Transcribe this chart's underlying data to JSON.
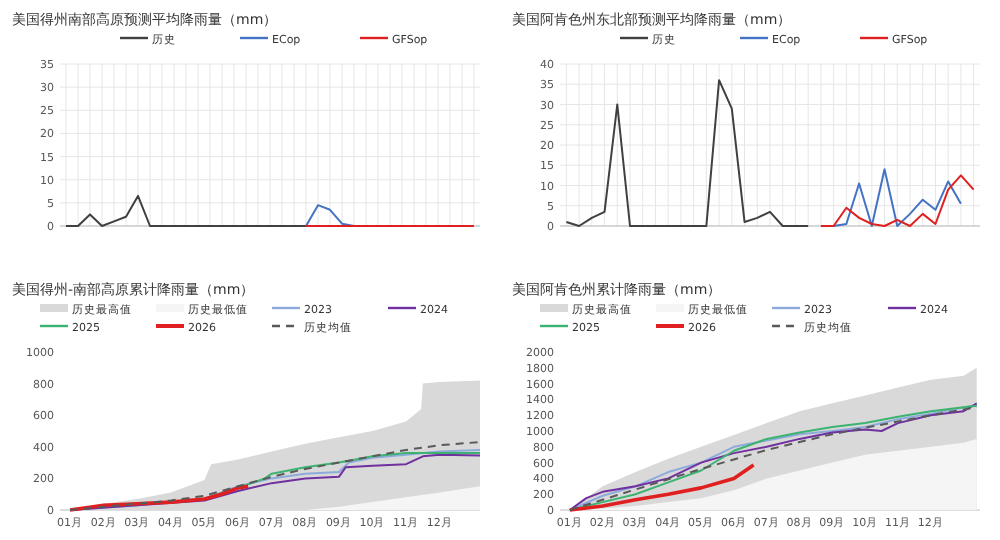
{
  "chart_data": [
    {
      "type": "line",
      "title": "美国得州南部高原预测平均降雨量（mm）",
      "legend": "top",
      "grid": true,
      "ylim": [
        0,
        35
      ],
      "yticks": [
        0,
        5,
        10,
        15,
        20,
        25,
        30,
        35
      ],
      "categories": [
        null,
        null,
        null,
        null,
        null,
        null,
        null,
        null,
        null,
        null,
        null,
        null,
        null,
        null,
        null,
        null,
        null,
        null,
        null,
        null,
        null,
        null,
        null,
        null,
        null,
        null,
        null,
        null,
        null,
        null,
        null,
        null,
        null,
        null,
        null
      ],
      "series": [
        {
          "name": "历史",
          "color": "#404040",
          "values": [
            0,
            0,
            2.5,
            0,
            1,
            2,
            6.5,
            0,
            0,
            0,
            0,
            0,
            0,
            0,
            0,
            0,
            0,
            0,
            0,
            0,
            0,
            null,
            null,
            null,
            null,
            null,
            null,
            null,
            null,
            null,
            null,
            null,
            null,
            null,
            null
          ]
        },
        {
          "name": "ECop",
          "color": "#4472c4",
          "values": [
            null,
            null,
            null,
            null,
            null,
            null,
            null,
            null,
            null,
            null,
            null,
            null,
            null,
            null,
            null,
            null,
            null,
            null,
            null,
            null,
            0,
            4.5,
            3.5,
            0.5,
            0,
            null,
            null,
            null,
            null,
            null,
            null,
            null,
            null,
            null,
            null
          ]
        },
        {
          "name": "GFSop",
          "color": "#e02020",
          "values": [
            null,
            null,
            null,
            null,
            null,
            null,
            null,
            null,
            null,
            null,
            null,
            null,
            null,
            null,
            null,
            null,
            null,
            null,
            null,
            null,
            0,
            0,
            0,
            0,
            0,
            0,
            0,
            0,
            0,
            0,
            0,
            0,
            0,
            0,
            0
          ]
        }
      ]
    },
    {
      "type": "line",
      "title": "美国阿肯色州东北部预测平均降雨量（mm）",
      "legend": "top",
      "grid": true,
      "ylim": [
        0,
        40
      ],
      "yticks": [
        0,
        5,
        10,
        15,
        20,
        25,
        30,
        35,
        40
      ],
      "categories": [
        null,
        null,
        null,
        null,
        null,
        null,
        null,
        null,
        null,
        null,
        null,
        null,
        null,
        null,
        null,
        null,
        null,
        null,
        null,
        null,
        null,
        null,
        null,
        null,
        null,
        null,
        null,
        null,
        null,
        null,
        null,
        null,
        null
      ],
      "series": [
        {
          "name": "历史",
          "color": "#404040",
          "values": [
            1,
            0,
            2,
            3.5,
            30,
            0,
            0,
            0,
            0,
            0,
            0,
            0,
            36,
            29,
            1,
            2,
            3.5,
            0,
            0,
            0,
            null,
            null,
            null,
            null,
            null,
            null,
            null,
            null,
            null,
            null,
            null,
            null,
            null
          ]
        },
        {
          "name": "ECop",
          "color": "#4472c4",
          "values": [
            null,
            null,
            null,
            null,
            null,
            null,
            null,
            null,
            null,
            null,
            null,
            null,
            null,
            null,
            null,
            null,
            null,
            null,
            null,
            null,
            null,
            0,
            0.5,
            10.5,
            0,
            14,
            0,
            3,
            6.5,
            4,
            11,
            5.5,
            null
          ]
        },
        {
          "name": "GFSop",
          "color": "#e02020",
          "values": [
            null,
            null,
            null,
            null,
            null,
            null,
            null,
            null,
            null,
            null,
            null,
            null,
            null,
            null,
            null,
            null,
            null,
            null,
            null,
            null,
            0,
            0,
            4.5,
            2,
            0.5,
            0,
            1.5,
            0,
            3,
            0.5,
            9,
            12.5,
            9
          ]
        }
      ]
    },
    {
      "type": "line",
      "title": "美国得州-南部高原累计降雨量（mm）",
      "legend": "top",
      "grid": false,
      "ylim": [
        0,
        1000
      ],
      "yticks": [
        0,
        200,
        400,
        600,
        800,
        1000
      ],
      "xlim": [
        0.7,
        13.2
      ],
      "xticks": [
        {
          "value": 1,
          "label": "01月"
        },
        {
          "value": 2,
          "label": "02月"
        },
        {
          "value": 3,
          "label": "03月"
        },
        {
          "value": 4,
          "label": "04月"
        },
        {
          "value": 5,
          "label": "05月"
        },
        {
          "value": 6,
          "label": "06月"
        },
        {
          "value": 7,
          "label": "07月"
        },
        {
          "value": 8,
          "label": "08月"
        },
        {
          "value": 9,
          "label": "09月"
        },
        {
          "value": 10,
          "label": "10月"
        },
        {
          "value": 11,
          "label": "11月"
        },
        {
          "value": 12,
          "label": "12月"
        }
      ],
      "series": [
        {
          "name": "历史最高值",
          "type": "area",
          "color": "#d9d9d9",
          "x": [
            1,
            2,
            3,
            4,
            5,
            5.2,
            6,
            7,
            8,
            9,
            10,
            11,
            11.45,
            11.5,
            12,
            13.2
          ],
          "values": [
            0,
            40,
            70,
            110,
            190,
            290,
            320,
            370,
            420,
            460,
            500,
            560,
            640,
            800,
            810,
            820
          ]
        },
        {
          "name": "历史最低值",
          "type": "area",
          "color": "#f5f5f5",
          "x": [
            1,
            8,
            9,
            10,
            11,
            12,
            13.2
          ],
          "values": [
            0,
            0,
            20,
            50,
            80,
            110,
            150
          ]
        },
        {
          "name": "2023",
          "color": "#8eaadb",
          "x": [
            1,
            3,
            5,
            6,
            7,
            8,
            9,
            9.3,
            10,
            11,
            12,
            13.2
          ],
          "values": [
            0,
            30,
            70,
            150,
            200,
            230,
            240,
            300,
            330,
            350,
            370,
            380
          ]
        },
        {
          "name": "2024",
          "color": "#7030a0",
          "x": [
            1,
            5,
            6,
            7,
            8,
            9,
            9.2,
            10,
            11,
            11.5,
            12,
            13.2
          ],
          "values": [
            0,
            60,
            120,
            170,
            200,
            210,
            270,
            280,
            290,
            340,
            350,
            345
          ]
        },
        {
          "name": "2025",
          "color": "#3cb371",
          "x": [
            5,
            6,
            6.8,
            7,
            8,
            9,
            9.5,
            10,
            11,
            12,
            13.2
          ],
          "values": [
            70,
            140,
            200,
            230,
            270,
            300,
            320,
            340,
            360,
            360,
            360
          ]
        },
        {
          "name": "2026",
          "color": "#e02020",
          "x": [
            1,
            2,
            3,
            4,
            5,
            5.5,
            6,
            6.3
          ],
          "values": [
            0,
            30,
            40,
            50,
            70,
            100,
            140,
            150
          ]
        },
        {
          "name": "历史均值",
          "color": "#595959",
          "line_style": "dashed",
          "x": [
            1,
            2,
            3,
            4,
            5,
            6,
            7,
            8,
            9,
            10,
            11,
            12,
            13.2
          ],
          "values": [
            0,
            20,
            40,
            60,
            90,
            150,
            210,
            260,
            300,
            340,
            380,
            410,
            430
          ]
        }
      ]
    },
    {
      "type": "line",
      "title": "美国阿肯色州累计降雨量（mm）",
      "legend": "top",
      "grid": false,
      "ylim": [
        0,
        2000
      ],
      "yticks": [
        0,
        200,
        400,
        600,
        800,
        1000,
        1200,
        1400,
        1600,
        1800,
        2000
      ],
      "xlim": [
        0.7,
        13.5
      ],
      "xticks": [
        {
          "value": 1,
          "label": "01月"
        },
        {
          "value": 2,
          "label": "02月"
        },
        {
          "value": 3,
          "label": "03月"
        },
        {
          "value": 4,
          "label": "04月"
        },
        {
          "value": 5,
          "label": "05月"
        },
        {
          "value": 6,
          "label": "06月"
        },
        {
          "value": 7,
          "label": "07月"
        },
        {
          "value": 8,
          "label": "08月"
        },
        {
          "value": 9,
          "label": "09月"
        },
        {
          "value": 10,
          "label": "10月"
        },
        {
          "value": 11,
          "label": "11月"
        },
        {
          "value": 12,
          "label": "12月"
        }
      ],
      "series": [
        {
          "name": "历史最高值",
          "type": "area",
          "color": "#d9d9d9",
          "x": [
            1,
            1.5,
            2,
            3,
            4,
            5,
            6,
            7,
            8,
            9,
            10,
            11,
            12,
            13,
            13.4
          ],
          "values": [
            0,
            150,
            300,
            480,
            650,
            800,
            950,
            1100,
            1250,
            1350,
            1450,
            1550,
            1650,
            1700,
            1800
          ]
        },
        {
          "name": "历史最低值",
          "type": "area",
          "color": "#f5f5f5",
          "x": [
            1,
            2,
            3,
            4,
            5,
            6,
            7,
            8,
            9,
            10,
            11,
            12,
            13,
            13.4
          ],
          "values": [
            0,
            20,
            50,
            100,
            150,
            250,
            400,
            500,
            600,
            700,
            750,
            800,
            850,
            900
          ]
        },
        {
          "name": "2023",
          "color": "#8eaadb",
          "x": [
            1,
            2,
            3,
            4,
            5,
            6,
            7,
            8,
            9,
            10,
            11,
            12,
            13.4
          ],
          "values": [
            0,
            180,
            300,
            480,
            600,
            800,
            880,
            960,
            1000,
            1050,
            1150,
            1220,
            1330
          ]
        },
        {
          "name": "2024",
          "color": "#7030a0",
          "x": [
            1,
            1.5,
            2,
            3,
            4,
            5,
            6,
            7,
            8,
            9,
            10,
            10.5,
            11,
            12,
            13,
            13.4
          ],
          "values": [
            0,
            150,
            230,
            300,
            400,
            600,
            720,
            800,
            900,
            980,
            1020,
            1000,
            1100,
            1200,
            1250,
            1350
          ]
        },
        {
          "name": "2025",
          "color": "#3cb371",
          "x": [
            1,
            2,
            3,
            4,
            5,
            6,
            7,
            8,
            9,
            10,
            11,
            12,
            13,
            13.4
          ],
          "values": [
            0,
            100,
            200,
            350,
            500,
            750,
            900,
            980,
            1050,
            1100,
            1180,
            1250,
            1300,
            1320
          ]
        },
        {
          "name": "2026",
          "color": "#e02020",
          "x": [
            1,
            2,
            3,
            4,
            5,
            6,
            6.6
          ],
          "values": [
            0,
            50,
            130,
            200,
            280,
            400,
            570
          ]
        },
        {
          "name": "历史均值",
          "color": "#595959",
          "line_style": "dashed",
          "x": [
            1,
            2,
            3,
            4,
            5,
            6,
            7,
            8,
            9,
            10,
            11,
            12,
            13.4
          ],
          "values": [
            0,
            130,
            260,
            390,
            520,
            640,
            760,
            860,
            960,
            1040,
            1120,
            1200,
            1300
          ]
        }
      ]
    }
  ]
}
